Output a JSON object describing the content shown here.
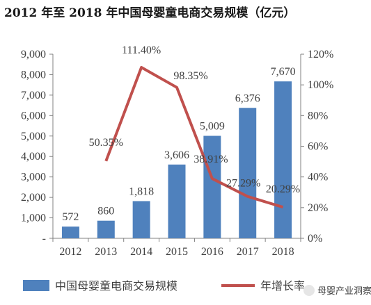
{
  "chart_data": {
    "type": "bar",
    "title": "2012 年至 2018 年中国母婴童电商交易规模（亿元）",
    "categories": [
      "2012",
      "2013",
      "2014",
      "2015",
      "2016",
      "2017",
      "2018"
    ],
    "series": [
      {
        "name": "中国母婴童电商交易规模",
        "type": "bar",
        "axis": "left",
        "color": "#4f81bd",
        "values": [
          572,
          860,
          1818,
          3606,
          5009,
          6376,
          7670
        ],
        "labels": [
          "572",
          "860",
          "1,818",
          "3,606",
          "5,009",
          "6,376",
          "7,670"
        ]
      },
      {
        "name": "年增长率",
        "type": "line",
        "axis": "right",
        "color": "#c0504d",
        "values": [
          null,
          50.35,
          111.4,
          98.35,
          38.91,
          27.29,
          20.29
        ],
        "labels": [
          "",
          "50.35%",
          "111.40%",
          "98.35%",
          "38.91%",
          "27.29%",
          "20.29%"
        ]
      }
    ],
    "left_axis": {
      "ylim": [
        0,
        9000
      ],
      "ticks": [
        0,
        1000,
        2000,
        3000,
        4000,
        5000,
        6000,
        7000,
        8000,
        9000
      ],
      "tick_labels": [
        "-",
        "1,000",
        "2,000",
        "3,000",
        "4,000",
        "5,000",
        "6,000",
        "7,000",
        "8,000",
        "9,000"
      ]
    },
    "right_axis": {
      "ylim": [
        0,
        120
      ],
      "ticks": [
        0,
        20,
        40,
        60,
        80,
        100,
        120
      ],
      "tick_labels": [
        "0%",
        "20%",
        "40%",
        "60%",
        "80%",
        "100%",
        "120%"
      ]
    },
    "grid": false,
    "legend": "bottom"
  },
  "watermark": "母婴产业洞察"
}
